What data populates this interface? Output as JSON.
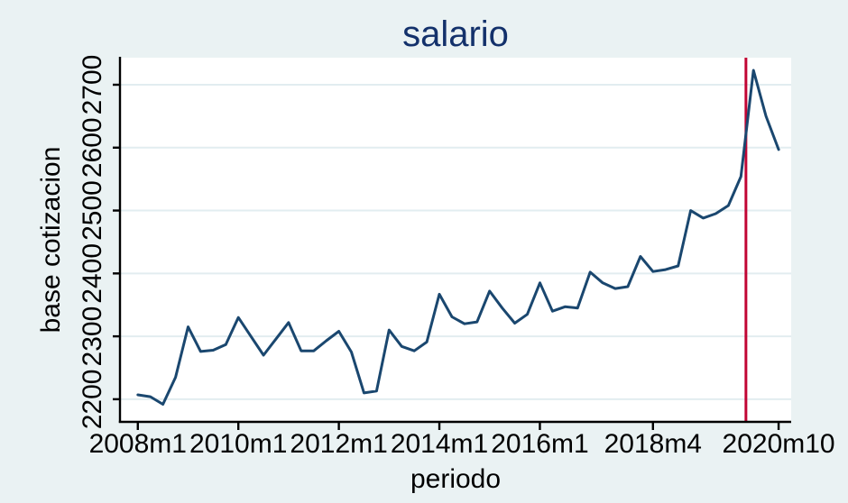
{
  "figure": {
    "background_color": "#eaf2f3",
    "plot_background_color": "#ffffff",
    "gridline_color": "#e2edf0",
    "axis_color": "#000000",
    "title_color": "#13316b"
  },
  "chart_data": {
    "type": "line",
    "title": "salario",
    "xlabel": "periodo",
    "ylabel": "base cotizacion",
    "grid": true,
    "legend": "none",
    "ylim": [
      2164,
      2743
    ],
    "y_ticks": [
      2200,
      2300,
      2400,
      2500,
      2600,
      2700
    ],
    "x_range": [
      -1.42,
      52.0
    ],
    "x_ticks": [
      {
        "index": 0,
        "label": "2008m1"
      },
      {
        "index": 8,
        "label": "2010m1"
      },
      {
        "index": 16,
        "label": "2012m1"
      },
      {
        "index": 24,
        "label": "2014m1"
      },
      {
        "index": 32,
        "label": "2016m1"
      },
      {
        "index": 41,
        "label": "2018m4"
      },
      {
        "index": 51,
        "label": "2020m10"
      }
    ],
    "categories": [
      "2008m1",
      "2008m4",
      "2008m7",
      "2008m10",
      "2009m1",
      "2009m4",
      "2009m7",
      "2009m10",
      "2010m1",
      "2010m4",
      "2010m7",
      "2010m10",
      "2011m1",
      "2011m4",
      "2011m7",
      "2011m10",
      "2012m1",
      "2012m4",
      "2012m7",
      "2012m10",
      "2013m1",
      "2013m4",
      "2013m7",
      "2013m10",
      "2014m1",
      "2014m4",
      "2014m7",
      "2014m10",
      "2015m1",
      "2015m4",
      "2015m7",
      "2015m10",
      "2016m1",
      "2016m4",
      "2016m7",
      "2016m10",
      "2017m1",
      "2017m4",
      "2017m7",
      "2017m10",
      "2018m1",
      "2018m4",
      "2018m7",
      "2018m10",
      "2019m1",
      "2019m4",
      "2019m7",
      "2019m10",
      "2020m1",
      "2020m4",
      "2020m7",
      "2020m10"
    ],
    "series": [
      {
        "name": "base cotizacion",
        "color": "#1a476f",
        "values": [
          2207,
          2204,
          2192,
          2235,
          2315,
          2276,
          2278,
          2287,
          2330,
          2300,
          2270,
          2296,
          2322,
          2277,
          2277,
          2293,
          2308,
          2275,
          2210,
          2213,
          2310,
          2284,
          2277,
          2291,
          2367,
          2331,
          2320,
          2323,
          2372,
          2345,
          2321,
          2335,
          2385,
          2340,
          2347,
          2345,
          2402,
          2385,
          2376,
          2379,
          2427,
          2403,
          2406,
          2412,
          2500,
          2488,
          2495,
          2508,
          2554,
          2723,
          2650,
          2597
        ]
      }
    ],
    "event_line": {
      "position_index": 48.4,
      "color": "#c10534"
    }
  }
}
